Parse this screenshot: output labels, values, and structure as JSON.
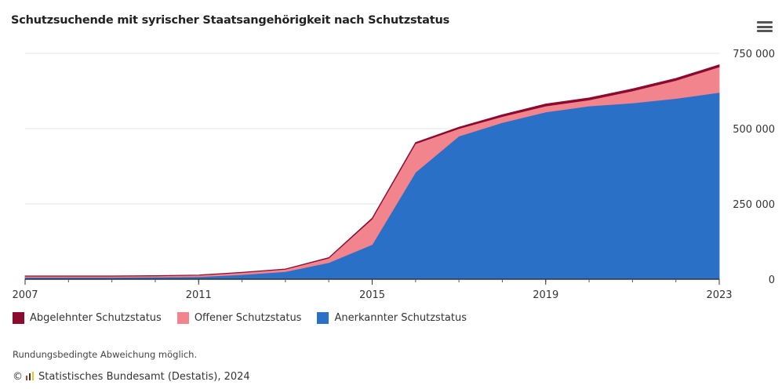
{
  "header": {
    "title": "Schutzsuchende mit syrischer Staatsangehörigkeit nach Schutzstatus"
  },
  "menu": {
    "icon": "hamburger-icon"
  },
  "footer": {
    "note": "Rundungsbedingte Abweichung möglich.",
    "copyright_symbol": "©",
    "source": "Statistisches Bundesamt (Destatis), 2024"
  },
  "chart_data": {
    "type": "area",
    "stacked": true,
    "title": "Schutzsuchende mit syrischer Staatsangehörigkeit nach Schutzstatus",
    "x": [
      2007,
      2008,
      2009,
      2010,
      2011,
      2012,
      2013,
      2014,
      2015,
      2016,
      2017,
      2018,
      2019,
      2020,
      2021,
      2022,
      2023
    ],
    "x_ticks": [
      "2007",
      "2011",
      "2015",
      "2019",
      "2023"
    ],
    "y_ticks": [
      "0",
      "250 000",
      "500 000",
      "750 000"
    ],
    "ylim": [
      0,
      750000
    ],
    "grid": true,
    "legend_position": "bottom-left",
    "series": [
      {
        "name": "Anerkannter Schutzstatus",
        "color": "#2970c6",
        "values": [
          6000,
          6000,
          6000,
          7000,
          8000,
          15000,
          25000,
          55000,
          115000,
          355000,
          475000,
          520000,
          555000,
          575000,
          585000,
          600000,
          620000
        ]
      },
      {
        "name": "Offener Schutzstatus",
        "color": "#f2848e",
        "values": [
          4000,
          4000,
          4000,
          4000,
          5000,
          7000,
          8000,
          15000,
          85000,
          95000,
          25000,
          20000,
          20000,
          20000,
          40000,
          60000,
          85000
        ]
      },
      {
        "name": "Abgelehnter Schutzstatus",
        "color": "#8c0a2e",
        "values": [
          1000,
          1000,
          1000,
          1000,
          1000,
          1000,
          1000,
          2000,
          3000,
          4000,
          5000,
          6000,
          7000,
          7000,
          7000,
          7000,
          7000
        ]
      }
    ]
  }
}
